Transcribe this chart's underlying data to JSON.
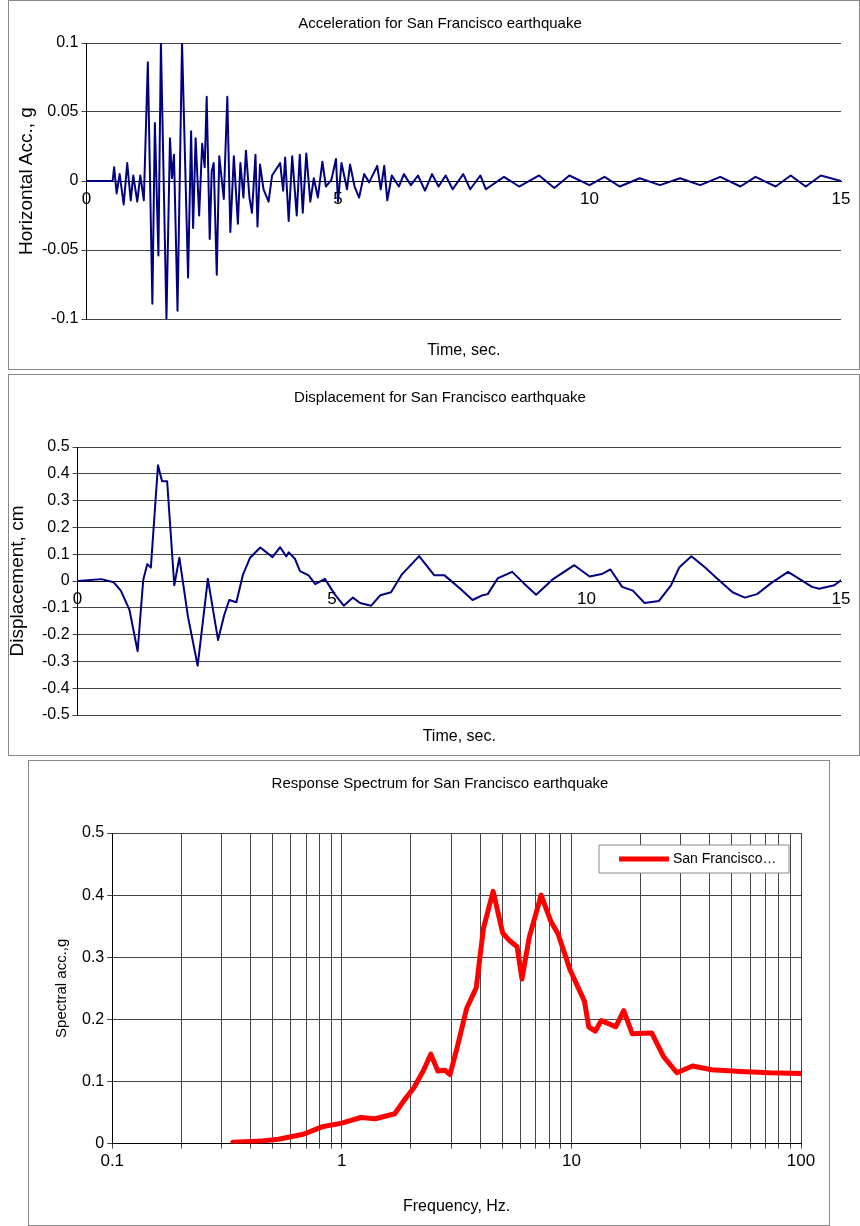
{
  "chart_data": [
    {
      "type": "line",
      "title": "Acceleration for San Francisco earthquake",
      "xlabel": "Time, sec.",
      "ylabel": "Horizontal Acc., g",
      "xlim": [
        0,
        15
      ],
      "xticks": [
        0,
        5,
        10,
        15
      ],
      "ylim": [
        -0.1,
        0.1
      ],
      "yticks": [
        -0.1,
        -0.05,
        0,
        0.05,
        0.1
      ],
      "grid": "y",
      "legend": false,
      "marker": "none",
      "series": [
        {
          "color": "#000080",
          "x": [
            0,
            0.52,
            0.55,
            0.6,
            0.66,
            0.74,
            0.81,
            0.88,
            0.93,
            1.01,
            1.07,
            1.14,
            1.22,
            1.31,
            1.36,
            1.43,
            1.48,
            1.59,
            1.66,
            1.7,
            1.74,
            1.81,
            1.9,
            2.02,
            2.08,
            2.12,
            2.17,
            2.24,
            2.3,
            2.35,
            2.39,
            2.45,
            2.49,
            2.53,
            2.59,
            2.64,
            2.73,
            2.8,
            2.86,
            2.93,
            3.01,
            3.06,
            3.12,
            3.17,
            3.24,
            3.29,
            3.36,
            3.4,
            3.45,
            3.52,
            3.62,
            3.69,
            3.85,
            3.91,
            3.95,
            4.02,
            4.09,
            4.18,
            4.24,
            4.3,
            4.37,
            4.45,
            4.52,
            4.6,
            4.69,
            4.76,
            4.87,
            4.96,
            5.0,
            5.07,
            5.18,
            5.24,
            5.33,
            5.42,
            5.52,
            5.62,
            5.78,
            5.85,
            5.92,
            5.98,
            6.07,
            6.21,
            6.31,
            6.45,
            6.59,
            6.73,
            6.87,
            7.0,
            7.14,
            7.28,
            7.49,
            7.63,
            7.83,
            7.94,
            8.3,
            8.6,
            9.0,
            9.3,
            9.6,
            10.0,
            10.3,
            10.6,
            11.0,
            11.4,
            11.8,
            12.2,
            12.6,
            13.0,
            13.3,
            13.7,
            14.0,
            14.3,
            14.6,
            15.0
          ],
          "values": [
            0,
            0,
            0.01,
            -0.009,
            0.005,
            -0.017,
            0.013,
            -0.014,
            0.004,
            -0.015,
            0.004,
            -0.014,
            0.086,
            -0.089,
            0.042,
            -0.054,
            0.1,
            -0.1,
            0.031,
            0.002,
            0.019,
            -0.094,
            0.1,
            -0.07,
            0.036,
            -0.034,
            0.031,
            -0.025,
            0.027,
            0.01,
            0.061,
            -0.042,
            0.007,
            0.013,
            -0.068,
            0.018,
            -0.013,
            0.061,
            -0.037,
            0.018,
            -0.031,
            0.013,
            -0.012,
            0.022,
            -0.012,
            -0.023,
            0.019,
            -0.033,
            0.012,
            -0.006,
            -0.015,
            0.004,
            0.013,
            -0.007,
            0.017,
            -0.029,
            0.018,
            -0.025,
            0.019,
            -0.023,
            0.02,
            -0.015,
            0.002,
            -0.012,
            0.014,
            -0.004,
            0.001,
            0.016,
            -0.015,
            0.013,
            -0.006,
            0.012,
            -0.004,
            -0.012,
            0.005,
            -0.001,
            0.011,
            -0.006,
            0.011,
            -0.014,
            0.004,
            -0.004,
            0.005,
            -0.003,
            0.004,
            -0.007,
            0.005,
            -0.004,
            0.004,
            -0.006,
            0.005,
            -0.006,
            0.004,
            -0.006,
            0.003,
            -0.004,
            0.004,
            -0.005,
            0.004,
            -0.003,
            0.003,
            -0.004,
            0.002,
            -0.003,
            0.002,
            -0.003,
            0.003,
            -0.004,
            0.003,
            -0.004,
            0.004,
            -0.004,
            0.004,
            0
          ]
        }
      ]
    },
    {
      "type": "line",
      "title": "Displacement for San Francisco earthquake",
      "xlabel": "Time, sec.",
      "ylabel": "Displacement, cm",
      "xlim": [
        0,
        15
      ],
      "xticks": [
        0,
        5,
        10,
        15
      ],
      "ylim": [
        -0.5,
        0.5
      ],
      "yticks": [
        -0.5,
        -0.4,
        -0.3,
        -0.2,
        -0.1,
        0,
        0.1,
        0.2,
        0.3,
        0.4,
        0.5
      ],
      "grid": "y",
      "legend": false,
      "marker": "none",
      "series": [
        {
          "color": "#000080",
          "x": [
            0,
            0.47,
            0.71,
            0.85,
            1.02,
            1.18,
            1.29,
            1.37,
            1.44,
            1.58,
            1.66,
            1.76,
            1.9,
            2.0,
            2.17,
            2.36,
            2.56,
            2.76,
            2.88,
            2.98,
            3.12,
            3.25,
            3.39,
            3.59,
            3.83,
            3.98,
            4.1,
            4.15,
            4.27,
            4.37,
            4.54,
            4.67,
            4.86,
            5.05,
            5.23,
            5.41,
            5.55,
            5.77,
            5.95,
            6.16,
            6.37,
            6.71,
            7.01,
            7.21,
            7.52,
            7.76,
            7.96,
            8.06,
            8.26,
            8.54,
            8.77,
            9.01,
            9.35,
            9.76,
            10.06,
            10.3,
            10.47,
            10.7,
            10.91,
            11.14,
            11.42,
            11.66,
            11.82,
            12.06,
            12.33,
            12.57,
            12.87,
            13.11,
            13.35,
            13.62,
            13.96,
            14.43,
            14.57,
            14.87,
            15.0
          ],
          "values": [
            0,
            0.007,
            -0.005,
            -0.036,
            -0.108,
            -0.262,
            0.004,
            0.063,
            0.05,
            0.432,
            0.372,
            0.372,
            -0.016,
            0.087,
            -0.134,
            -0.316,
            0.008,
            -0.22,
            -0.128,
            -0.071,
            -0.079,
            0.024,
            0.087,
            0.125,
            0.089,
            0.126,
            0.092,
            0.107,
            0.083,
            0.037,
            0.021,
            -0.012,
            0.008,
            -0.049,
            -0.092,
            -0.062,
            -0.082,
            -0.092,
            -0.053,
            -0.042,
            0.024,
            0.093,
            0.021,
            0.021,
            -0.029,
            -0.071,
            -0.053,
            -0.049,
            0.011,
            0.034,
            -0.009,
            -0.051,
            0.008,
            0.059,
            0.017,
            0.026,
            0.043,
            -0.022,
            -0.036,
            -0.082,
            -0.075,
            -0.016,
            0.05,
            0.092,
            0.05,
            0.008,
            -0.042,
            -0.062,
            -0.049,
            -0.009,
            0.034,
            -0.022,
            -0.029,
            -0.016,
            0.003
          ]
        }
      ]
    },
    {
      "type": "line",
      "title": "Response Spectrum for San Francisco earthquake",
      "xlabel": "Frequency, Hz.",
      "ylabel": "Spectral acc.,g",
      "log": "x",
      "xlim": [
        0.1,
        100
      ],
      "xticks": [
        0.1,
        {
          "value": 0.2,
          "label": null
        },
        {
          "value": 0.3,
          "label": null
        },
        {
          "value": 0.4,
          "label": null
        },
        {
          "value": 0.5,
          "label": null
        },
        {
          "value": 0.6,
          "label": null
        },
        {
          "value": 0.7,
          "label": null
        },
        {
          "value": 0.8,
          "label": null
        },
        {
          "value": 0.9,
          "label": null
        },
        1,
        {
          "value": 2,
          "label": null
        },
        {
          "value": 3,
          "label": null
        },
        {
          "value": 4,
          "label": null
        },
        {
          "value": 5,
          "label": null
        },
        {
          "value": 6,
          "label": null
        },
        {
          "value": 7,
          "label": null
        },
        {
          "value": 8,
          "label": null
        },
        {
          "value": 9,
          "label": null
        },
        10,
        {
          "value": 20,
          "label": null
        },
        {
          "value": 30,
          "label": null
        },
        {
          "value": 40,
          "label": null
        },
        {
          "value": 50,
          "label": null
        },
        {
          "value": 60,
          "label": null
        },
        {
          "value": 70,
          "label": null
        },
        {
          "value": 80,
          "label": null
        },
        {
          "value": 90,
          "label": null
        },
        100
      ],
      "ylim": [
        0,
        0.5
      ],
      "yticks": [
        0,
        0.1,
        0.2,
        0.3,
        0.4,
        0.5
      ],
      "grid": true,
      "legend": "top right",
      "marker": "none",
      "series": [
        {
          "name": "San Francisco…",
          "color": "#ff0000",
          "x": [
            0.335,
            0.44,
            0.53,
            0.68,
            0.82,
            1.0,
            1.21,
            1.4,
            1.7,
            1.87,
            2.06,
            2.27,
            2.44,
            2.62,
            2.82,
            2.96,
            3.18,
            3.5,
            3.85,
            4.14,
            4.56,
            5.02,
            5.4,
            5.8,
            6.09,
            6.55,
            7.38,
            8.13,
            8.74,
            9.86,
            11.4,
            11.9,
            12.7,
            13.5,
            15.6,
            16.9,
            18.4,
            22.4,
            25.2,
            28.8,
            33.7,
            40.8,
            54.5,
            72.8,
            100
          ],
          "values": [
            0.002,
            0.004,
            0.007,
            0.015,
            0.027,
            0.033,
            0.042,
            0.04,
            0.048,
            0.07,
            0.09,
            0.118,
            0.144,
            0.117,
            0.118,
            0.111,
            0.155,
            0.218,
            0.251,
            0.347,
            0.406,
            0.339,
            0.326,
            0.317,
            0.265,
            0.332,
            0.4,
            0.358,
            0.338,
            0.28,
            0.229,
            0.188,
            0.181,
            0.198,
            0.188,
            0.214,
            0.177,
            0.178,
            0.14,
            0.114,
            0.125,
            0.119,
            0.116,
            0.114,
            0.113
          ]
        }
      ]
    }
  ]
}
